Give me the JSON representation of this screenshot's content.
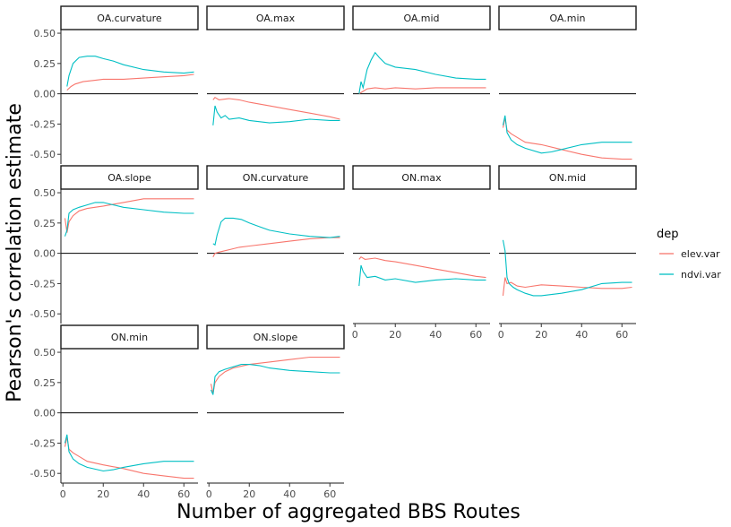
{
  "chart_data": {
    "type": "line",
    "xlabel": "Number of aggregated BBS Routes",
    "ylabel": "Pearson's correlation estimate",
    "xlim": [
      -1,
      67
    ],
    "ylim": [
      -0.58,
      0.53
    ],
    "x_ticks": [
      0,
      20,
      40,
      60
    ],
    "y_ticks": [
      -0.5,
      -0.25,
      0,
      0.25,
      0.5
    ],
    "y_tick_labels": [
      "-0.50",
      "-0.25",
      "0.00",
      "0.25",
      "0.50"
    ],
    "x_tick_labels": [
      "0",
      "20",
      "40",
      "60"
    ],
    "hline": 0,
    "grid": false,
    "legend": {
      "title": "dep",
      "position": "right",
      "entries": [
        {
          "name": "elev.var",
          "color": "#F8766D"
        },
        {
          "name": "ndvi.var",
          "color": "#00BFC4"
        }
      ]
    },
    "panels": [
      {
        "title": "OA.curvature",
        "series": [
          {
            "name": "elev.var",
            "x": [
              2,
              4,
              6,
              10,
              15,
              20,
              30,
              40,
              50,
              60,
              65
            ],
            "y": [
              0.03,
              0.06,
              0.08,
              0.1,
              0.11,
              0.12,
              0.12,
              0.13,
              0.14,
              0.15,
              0.16
            ]
          },
          {
            "name": "ndvi.var",
            "x": [
              2,
              3,
              5,
              8,
              12,
              16,
              20,
              25,
              30,
              40,
              50,
              60,
              65
            ],
            "y": [
              0.06,
              0.15,
              0.25,
              0.3,
              0.31,
              0.31,
              0.29,
              0.27,
              0.24,
              0.2,
              0.18,
              0.17,
              0.18
            ]
          }
        ]
      },
      {
        "title": "OA.max",
        "series": [
          {
            "name": "elev.var",
            "x": [
              2,
              3,
              5,
              10,
              15,
              20,
              30,
              40,
              50,
              60,
              65
            ],
            "y": [
              -0.05,
              -0.03,
              -0.05,
              -0.04,
              -0.05,
              -0.07,
              -0.1,
              -0.13,
              -0.16,
              -0.19,
              -0.21
            ]
          },
          {
            "name": "ndvi.var",
            "x": [
              2,
              3,
              4,
              6,
              8,
              10,
              15,
              20,
              30,
              40,
              50,
              60,
              65
            ],
            "y": [
              -0.26,
              -0.1,
              -0.15,
              -0.2,
              -0.18,
              -0.21,
              -0.2,
              -0.22,
              -0.24,
              -0.23,
              -0.21,
              -0.22,
              -0.22
            ]
          }
        ]
      },
      {
        "title": "OA.mid",
        "series": [
          {
            "name": "elev.var",
            "x": [
              2,
              4,
              6,
              10,
              15,
              20,
              30,
              40,
              50,
              60,
              65
            ],
            "y": [
              0.0,
              0.02,
              0.04,
              0.05,
              0.04,
              0.05,
              0.04,
              0.05,
              0.05,
              0.05,
              0.05
            ]
          },
          {
            "name": "ndvi.var",
            "x": [
              2,
              3,
              4,
              6,
              8,
              10,
              12,
              15,
              20,
              30,
              40,
              50,
              60,
              65
            ],
            "y": [
              0.0,
              0.1,
              0.05,
              0.2,
              0.28,
              0.34,
              0.3,
              0.25,
              0.22,
              0.2,
              0.16,
              0.13,
              0.12,
              0.12
            ]
          }
        ]
      },
      {
        "title": "OA.min",
        "series": [
          {
            "name": "elev.var",
            "x": [
              1,
              2,
              3,
              5,
              8,
              12,
              20,
              30,
              40,
              50,
              60,
              65
            ],
            "y": [
              -0.28,
              -0.2,
              -0.3,
              -0.33,
              -0.36,
              -0.4,
              -0.42,
              -0.46,
              -0.5,
              -0.53,
              -0.54,
              -0.54
            ]
          },
          {
            "name": "ndvi.var",
            "x": [
              1,
              2,
              3,
              5,
              8,
              12,
              20,
              25,
              30,
              40,
              50,
              60,
              65
            ],
            "y": [
              -0.26,
              -0.18,
              -0.32,
              -0.38,
              -0.42,
              -0.45,
              -0.49,
              -0.48,
              -0.46,
              -0.42,
              -0.4,
              -0.4,
              -0.4
            ]
          }
        ]
      },
      {
        "title": "OA.slope",
        "series": [
          {
            "name": "elev.var",
            "x": [
              1,
              2,
              3,
              5,
              8,
              12,
              20,
              30,
              40,
              50,
              60,
              65
            ],
            "y": [
              0.29,
              0.17,
              0.26,
              0.31,
              0.35,
              0.37,
              0.39,
              0.42,
              0.45,
              0.45,
              0.45,
              0.45
            ]
          },
          {
            "name": "ndvi.var",
            "x": [
              1,
              2,
              3,
              5,
              8,
              12,
              16,
              20,
              25,
              30,
              40,
              50,
              60,
              65
            ],
            "y": [
              0.14,
              0.19,
              0.33,
              0.36,
              0.38,
              0.4,
              0.42,
              0.42,
              0.4,
              0.38,
              0.36,
              0.34,
              0.33,
              0.33
            ]
          }
        ]
      },
      {
        "title": "ON.curvature",
        "series": [
          {
            "name": "elev.var",
            "x": [
              2,
              3,
              5,
              10,
              15,
              20,
              30,
              40,
              50,
              60,
              65
            ],
            "y": [
              -0.03,
              0.0,
              0.01,
              0.03,
              0.05,
              0.06,
              0.08,
              0.1,
              0.12,
              0.13,
              0.13
            ]
          },
          {
            "name": "ndvi.var",
            "x": [
              2,
              3,
              4,
              6,
              8,
              12,
              16,
              20,
              25,
              30,
              40,
              50,
              60,
              65
            ],
            "y": [
              0.08,
              0.07,
              0.15,
              0.26,
              0.29,
              0.29,
              0.28,
              0.25,
              0.22,
              0.19,
              0.16,
              0.14,
              0.13,
              0.14
            ]
          }
        ]
      },
      {
        "title": "ON.max",
        "series": [
          {
            "name": "elev.var",
            "x": [
              2,
              3,
              5,
              10,
              15,
              20,
              30,
              40,
              50,
              60,
              65
            ],
            "y": [
              -0.05,
              -0.03,
              -0.05,
              -0.04,
              -0.06,
              -0.07,
              -0.1,
              -0.13,
              -0.16,
              -0.19,
              -0.2
            ]
          },
          {
            "name": "ndvi.var",
            "x": [
              2,
              3,
              4,
              6,
              10,
              15,
              20,
              30,
              40,
              50,
              60,
              65
            ],
            "y": [
              -0.27,
              -0.1,
              -0.15,
              -0.2,
              -0.19,
              -0.22,
              -0.21,
              -0.24,
              -0.22,
              -0.21,
              -0.22,
              -0.22
            ]
          }
        ]
      },
      {
        "title": "ON.mid",
        "series": [
          {
            "name": "elev.var",
            "x": [
              1,
              2,
              3,
              5,
              8,
              12,
              20,
              30,
              40,
              50,
              60,
              65
            ],
            "y": [
              -0.35,
              -0.2,
              -0.25,
              -0.24,
              -0.27,
              -0.28,
              -0.26,
              -0.27,
              -0.28,
              -0.29,
              -0.29,
              -0.28
            ]
          },
          {
            "name": "ndvi.var",
            "x": [
              1,
              2,
              3,
              4,
              6,
              8,
              12,
              16,
              20,
              25,
              30,
              40,
              50,
              60,
              65
            ],
            "y": [
              0.11,
              0.02,
              -0.2,
              -0.25,
              -0.28,
              -0.3,
              -0.33,
              -0.35,
              -0.35,
              -0.34,
              -0.33,
              -0.3,
              -0.25,
              -0.24,
              -0.24
            ]
          }
        ]
      },
      {
        "title": "ON.min",
        "series": [
          {
            "name": "elev.var",
            "x": [
              1,
              2,
              3,
              5,
              8,
              12,
              20,
              30,
              40,
              50,
              60,
              65
            ],
            "y": [
              -0.28,
              -0.2,
              -0.3,
              -0.33,
              -0.36,
              -0.4,
              -0.43,
              -0.46,
              -0.5,
              -0.52,
              -0.54,
              -0.54
            ]
          },
          {
            "name": "ndvi.var",
            "x": [
              1,
              2,
              3,
              5,
              8,
              12,
              20,
              25,
              30,
              40,
              50,
              60,
              65
            ],
            "y": [
              -0.25,
              -0.18,
              -0.32,
              -0.38,
              -0.42,
              -0.45,
              -0.48,
              -0.47,
              -0.45,
              -0.42,
              -0.4,
              -0.4,
              -0.4
            ]
          }
        ]
      },
      {
        "title": "ON.slope",
        "series": [
          {
            "name": "elev.var",
            "x": [
              1,
              2,
              3,
              5,
              8,
              12,
              20,
              30,
              40,
              50,
              60,
              65
            ],
            "y": [
              0.24,
              0.16,
              0.25,
              0.3,
              0.34,
              0.37,
              0.4,
              0.42,
              0.44,
              0.46,
              0.46,
              0.46
            ]
          },
          {
            "name": "ndvi.var",
            "x": [
              1,
              2,
              3,
              5,
              8,
              12,
              16,
              20,
              25,
              30,
              40,
              50,
              60,
              65
            ],
            "y": [
              0.19,
              0.15,
              0.3,
              0.34,
              0.36,
              0.38,
              0.4,
              0.4,
              0.39,
              0.37,
              0.35,
              0.34,
              0.33,
              0.33
            ]
          }
        ]
      }
    ]
  }
}
